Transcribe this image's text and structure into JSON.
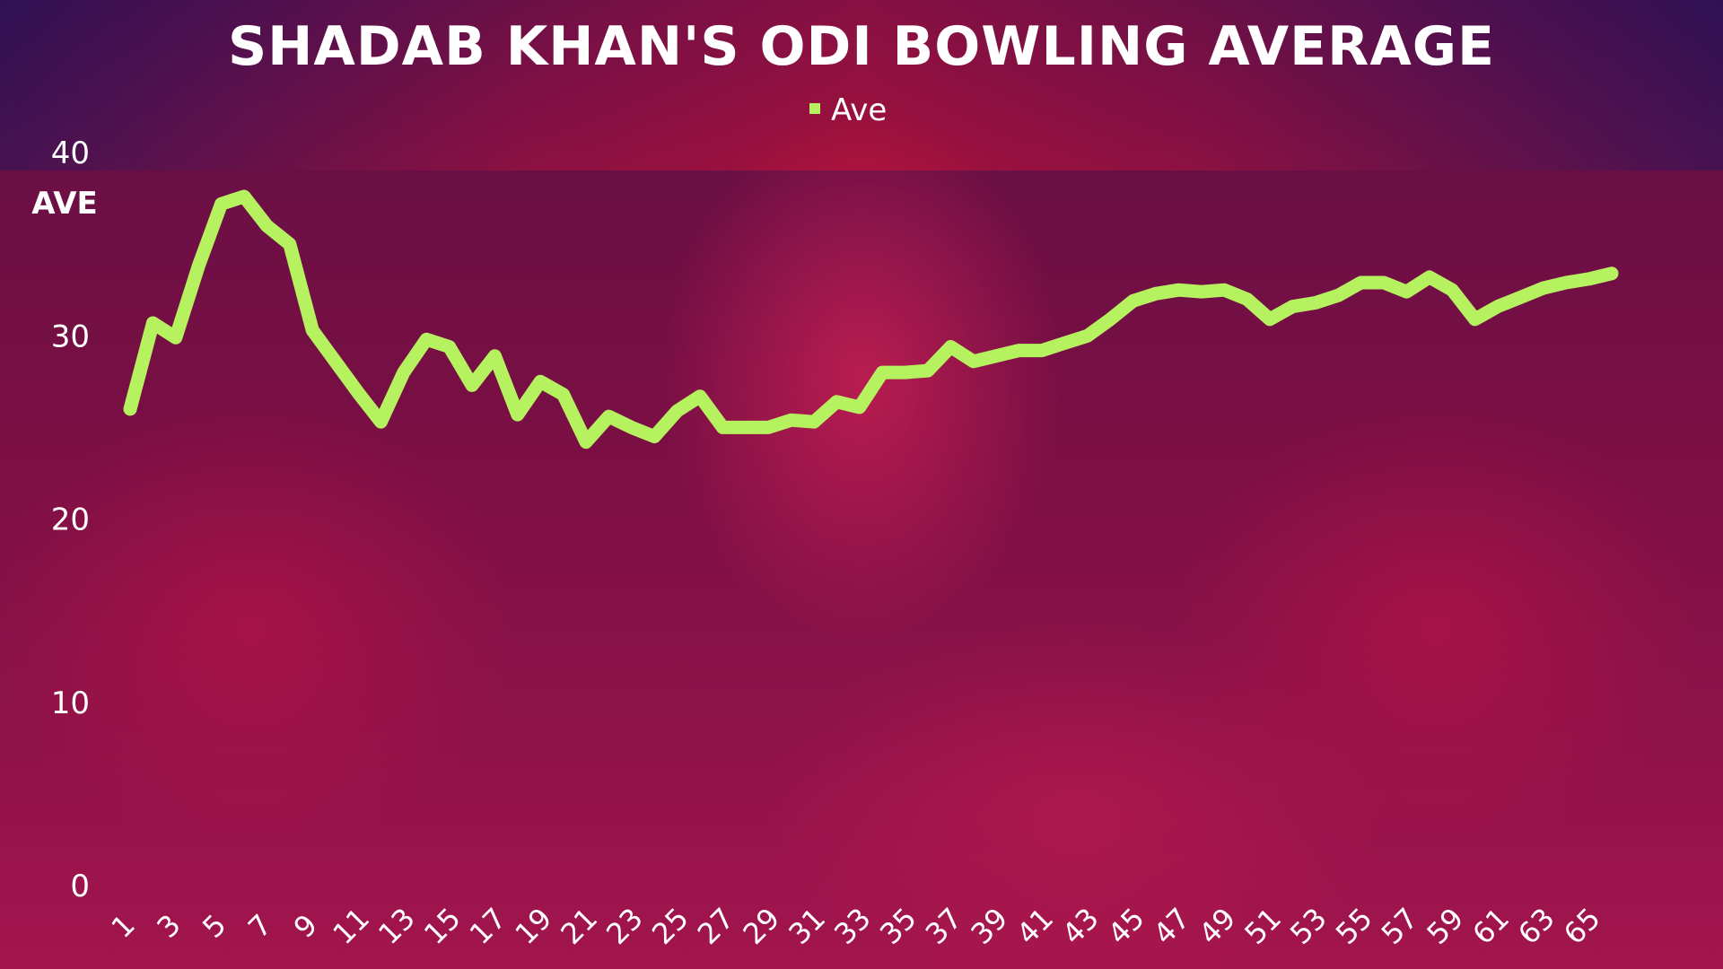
{
  "chart_data": {
    "type": "line",
    "title": "SHADAB KHAN'S ODI BOWLING AVERAGE",
    "ylabel": "AVE",
    "xlabel": "",
    "ylim": [
      0,
      40
    ],
    "yticks": [
      0,
      10,
      20,
      30,
      40
    ],
    "grid": false,
    "legend_position": "top-center",
    "x": [
      1,
      2,
      3,
      4,
      5,
      6,
      7,
      8,
      9,
      10,
      11,
      12,
      13,
      14,
      15,
      16,
      17,
      18,
      19,
      20,
      21,
      22,
      23,
      24,
      25,
      26,
      27,
      28,
      29,
      30,
      31,
      32,
      33,
      34,
      35,
      36,
      37,
      38,
      39,
      40,
      41,
      42,
      43,
      44,
      45,
      46,
      47,
      48,
      49,
      50,
      51,
      52,
      53,
      54,
      55,
      56,
      57,
      58,
      59,
      60,
      61,
      62,
      63,
      64,
      65,
      66
    ],
    "xtick_labels": [
      "1",
      "3",
      "5",
      "7",
      "9",
      "11",
      "13",
      "15",
      "17",
      "19",
      "21",
      "23",
      "25",
      "27",
      "29",
      "31",
      "33",
      "35",
      "37",
      "39",
      "41",
      "43",
      "45",
      "47",
      "49",
      "51",
      "53",
      "55",
      "57",
      "59",
      "61",
      "63",
      "65"
    ],
    "series": [
      {
        "name": "Ave",
        "color": "#b6f25f",
        "values": [
          26.0,
          30.7,
          29.9,
          33.8,
          37.2,
          37.6,
          36.0,
          35.0,
          30.3,
          28.6,
          26.9,
          25.3,
          28.0,
          29.8,
          29.4,
          27.3,
          28.9,
          25.7,
          27.5,
          26.8,
          24.2,
          25.6,
          25.0,
          24.5,
          25.9,
          26.7,
          25.0,
          25.0,
          25.0,
          25.4,
          25.3,
          26.4,
          26.1,
          28.0,
          28.0,
          28.1,
          29.4,
          28.6,
          28.9,
          29.2,
          29.2,
          29.6,
          30.0,
          30.9,
          31.9,
          32.3,
          32.5,
          32.4,
          32.5,
          32.0,
          30.9,
          31.6,
          31.8,
          32.2,
          32.9,
          32.9,
          32.4,
          33.2,
          32.5,
          30.9,
          31.6,
          32.1,
          32.6,
          32.9,
          33.1,
          33.4
        ]
      }
    ]
  }
}
